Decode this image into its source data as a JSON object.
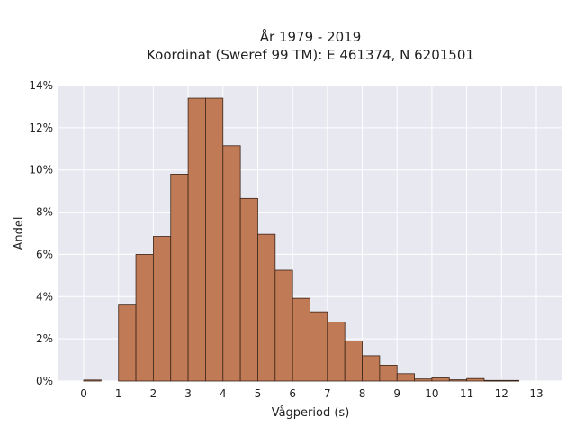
{
  "chart_data": {
    "type": "bar",
    "title": "År 1979 - 2019",
    "subtitle": "Koordinat (Sweref 99 TM): E 461374, N 6201501",
    "xlabel": "Vågperiod (s)",
    "ylabel": "Andel",
    "bin_width": 0.5,
    "bins": [
      0,
      0.5,
      1,
      1.5,
      2,
      2.5,
      3,
      3.5,
      4,
      4.5,
      5,
      5.5,
      6,
      6.5,
      7,
      7.5,
      8,
      8.5,
      9,
      9.5,
      10,
      10.5,
      11,
      11.5,
      12,
      12.5
    ],
    "values": [
      0.05,
      0,
      3.6,
      6.0,
      6.85,
      9.8,
      13.4,
      13.4,
      11.15,
      8.65,
      6.95,
      5.25,
      3.92,
      3.28,
      2.8,
      1.9,
      1.2,
      0.75,
      0.35,
      0.1,
      0.15,
      0.06,
      0.12,
      0.03,
      0.03,
      0
    ],
    "xlim": [
      -0.75,
      13.75
    ],
    "ylim": [
      0,
      14
    ],
    "x_ticks": [
      "0",
      "1",
      "2",
      "3",
      "4",
      "5",
      "6",
      "7",
      "8",
      "9",
      "10",
      "11",
      "12",
      "13"
    ],
    "y_ticks": [
      "0%",
      "2%",
      "4%",
      "6%",
      "8%",
      "10%",
      "12%",
      "14%"
    ],
    "grid": true,
    "colors": {
      "bar": "#c07a55",
      "bar_edge": "#3b2418",
      "plot_bg": "#e8e8f0",
      "grid": "#ffffff"
    }
  }
}
